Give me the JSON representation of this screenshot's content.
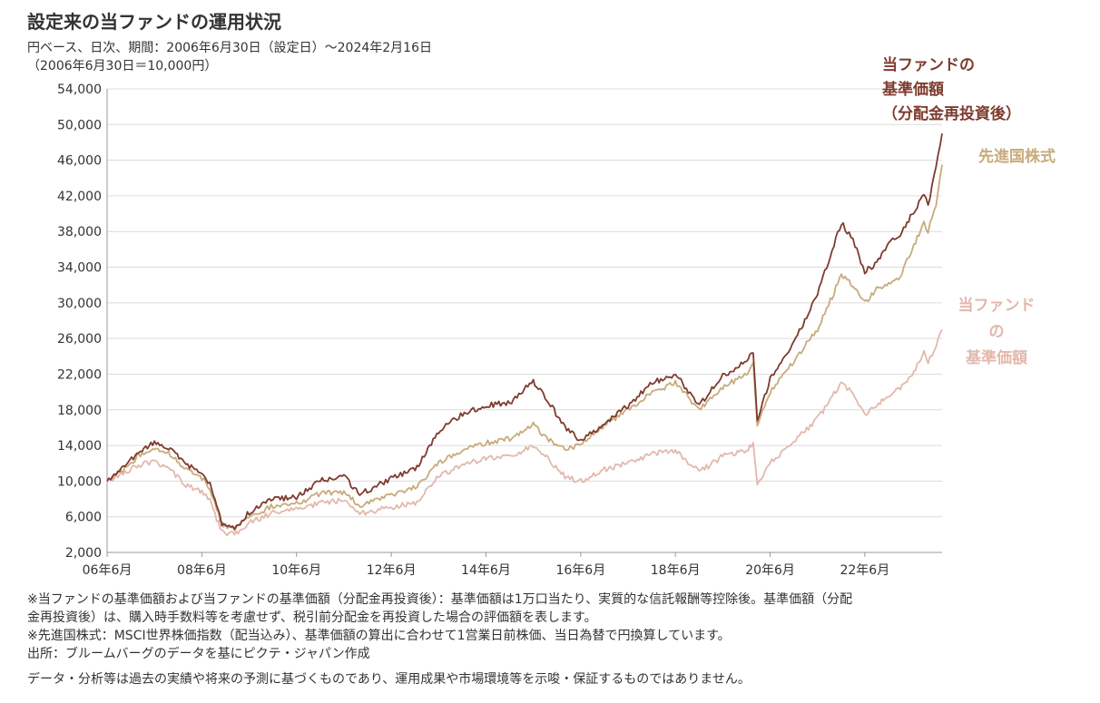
{
  "header": {
    "title": "設定来の当ファンドの運用状況",
    "subtitle_1": "円ベース、日次、期間：2006年6月30日（設定日）～2024年2月16日",
    "subtitle_2": "（2006年6月30日＝10,000円）"
  },
  "colors": {
    "reinvested": "#7e3b2e",
    "msci": "#c7ab7b",
    "nav": "#e3b8ad",
    "grid": "#dcdcdc"
  },
  "chart_data": {
    "type": "line",
    "title": "設定来の当ファンドの運用状況",
    "xlabel": "",
    "ylabel": "",
    "x_ticks": [
      "06年6月",
      "08年6月",
      "10年6月",
      "12年6月",
      "14年6月",
      "16年6月",
      "18年6月",
      "20年6月",
      "22年6月"
    ],
    "x_start": "2006-06-30",
    "x_end": "2024-02-16",
    "ylim": [
      2000,
      54000
    ],
    "y_ticks": [
      "2,000",
      "6,000",
      "10,000",
      "14,000",
      "18,000",
      "22,000",
      "26,000",
      "30,000",
      "34,000",
      "38,000",
      "42,000",
      "46,000",
      "50,000",
      "54,000"
    ],
    "y_tick_values": [
      2000,
      6000,
      10000,
      14000,
      18000,
      22000,
      26000,
      30000,
      34000,
      38000,
      42000,
      46000,
      50000,
      54000
    ],
    "grid": true,
    "legend": "direct labels at right end of lines",
    "series": [
      {
        "name": "当ファンドの基準価額（分配金再投資後）",
        "label_lines": [
          "当ファンドの",
          "基準価額",
          "（分配金再投資後）"
        ],
        "x": [
          "2006-06-30",
          "2006-10-31",
          "2007-02-28",
          "2007-06-30",
          "2007-10-31",
          "2008-02-28",
          "2008-06-30",
          "2008-08-31",
          "2008-11-30",
          "2009-03-10",
          "2009-06-30",
          "2009-12-31",
          "2010-06-30",
          "2010-12-31",
          "2011-06-30",
          "2011-10-31",
          "2012-06-30",
          "2012-12-31",
          "2013-06-30",
          "2013-12-31",
          "2014-06-30",
          "2014-12-31",
          "2015-06-30",
          "2015-09-30",
          "2016-02-29",
          "2016-06-30",
          "2016-12-31",
          "2017-06-30",
          "2017-12-31",
          "2018-06-30",
          "2018-12-31",
          "2019-06-30",
          "2019-12-31",
          "2020-02-20",
          "2020-03-23",
          "2020-06-30",
          "2020-12-31",
          "2021-06-30",
          "2021-12-31",
          "2022-03-31",
          "2022-06-30",
          "2022-09-30",
          "2022-12-31",
          "2023-03-31",
          "2023-06-30",
          "2023-09-30",
          "2023-10-31",
          "2023-12-31",
          "2024-02-16"
        ],
        "values": [
          10000,
          11500,
          13200,
          14300,
          13600,
          11800,
          11000,
          9600,
          5300,
          4700,
          6500,
          8000,
          8200,
          10100,
          10500,
          8500,
          10300,
          11300,
          15500,
          17600,
          18500,
          18800,
          21200,
          19500,
          16000,
          14500,
          16500,
          18500,
          21000,
          22000,
          18500,
          21800,
          23500,
          24500,
          16800,
          21500,
          25500,
          31000,
          39000,
          37000,
          33500,
          34500,
          36800,
          37500,
          40000,
          42000,
          41000,
          45000,
          49000
        ]
      },
      {
        "name": "先進国株式",
        "label_lines": [
          "先進国株式"
        ],
        "x": [
          "2006-06-30",
          "2006-10-31",
          "2007-02-28",
          "2007-06-30",
          "2007-10-31",
          "2008-02-28",
          "2008-06-30",
          "2008-08-31",
          "2008-11-30",
          "2009-03-10",
          "2009-06-30",
          "2009-12-31",
          "2010-06-30",
          "2010-12-31",
          "2011-06-30",
          "2011-10-31",
          "2012-06-30",
          "2012-12-31",
          "2013-06-30",
          "2013-12-31",
          "2014-06-30",
          "2014-12-31",
          "2015-06-30",
          "2015-09-30",
          "2016-02-29",
          "2016-06-30",
          "2016-12-31",
          "2017-06-30",
          "2017-12-31",
          "2018-06-30",
          "2018-12-31",
          "2019-06-30",
          "2019-12-31",
          "2020-02-20",
          "2020-03-23",
          "2020-06-30",
          "2020-12-31",
          "2021-06-30",
          "2021-12-31",
          "2022-03-31",
          "2022-06-30",
          "2022-09-30",
          "2022-12-31",
          "2023-03-31",
          "2023-06-30",
          "2023-09-30",
          "2023-10-31",
          "2023-12-31",
          "2024-02-16"
        ],
        "values": [
          10000,
          11300,
          12800,
          13700,
          13000,
          11200,
          10400,
          9100,
          5200,
          4500,
          6000,
          7200,
          7400,
          8600,
          8800,
          7200,
          8500,
          9300,
          12000,
          13500,
          14300,
          14800,
          16300,
          15000,
          13500,
          14200,
          16300,
          18000,
          20000,
          21000,
          18000,
          20500,
          22000,
          23300,
          16500,
          20000,
          23500,
          27000,
          33000,
          32000,
          30000,
          31500,
          32000,
          33000,
          36000,
          39000,
          38000,
          41000,
          45500
        ]
      },
      {
        "name": "当ファンドの基準価額",
        "label_lines": [
          "当ファンド",
          "の",
          "基準価額"
        ],
        "x": [
          "2006-06-30",
          "2006-10-31",
          "2007-02-28",
          "2007-06-30",
          "2007-10-31",
          "2008-02-28",
          "2008-06-30",
          "2008-08-31",
          "2008-11-30",
          "2009-03-10",
          "2009-06-30",
          "2009-12-31",
          "2010-06-30",
          "2010-12-31",
          "2011-06-30",
          "2011-10-31",
          "2012-06-30",
          "2012-12-31",
          "2013-06-30",
          "2013-12-31",
          "2014-06-30",
          "2014-12-31",
          "2015-06-30",
          "2015-09-30",
          "2016-02-29",
          "2016-06-30",
          "2016-12-31",
          "2017-06-30",
          "2017-12-31",
          "2018-06-30",
          "2018-12-31",
          "2019-06-30",
          "2019-12-31",
          "2020-02-20",
          "2020-03-23",
          "2020-06-30",
          "2020-12-31",
          "2021-06-30",
          "2021-12-31",
          "2022-03-31",
          "2022-06-30",
          "2022-09-30",
          "2022-12-31",
          "2023-03-31",
          "2023-06-30",
          "2023-09-30",
          "2023-10-31",
          "2023-12-31",
          "2024-02-16"
        ],
        "values": [
          10000,
          10800,
          11800,
          12200,
          11300,
          9500,
          8800,
          7800,
          4300,
          4000,
          5300,
          6500,
          6800,
          7600,
          7800,
          6300,
          7100,
          7500,
          10500,
          11800,
          12500,
          12800,
          14000,
          12800,
          10500,
          10000,
          11300,
          12000,
          13000,
          13500,
          11000,
          12800,
          13500,
          14200,
          9500,
          12000,
          14500,
          17000,
          21000,
          19800,
          17500,
          18500,
          19500,
          20500,
          22000,
          24500,
          23500,
          25000,
          27000
        ]
      }
    ]
  },
  "notes": {
    "line_1": "※当ファンドの基準価額および当ファンドの基準価額（分配金再投資後）：基準価額は1万口当たり、実質的な信託報酬等控除後。基準価額（分配",
    "line_2": "金再投資後）は、購入時手数料等を考慮せず、税引前分配金を再投資した場合の評価額を表します。",
    "line_3": "※先進国株式：MSCI世界株価指数（配当込み）、基準価額の算出に合わせて1営業日前株価、当日為替で円換算しています。",
    "line_4": "出所：ブルームバーグのデータを基にピクテ・ジャパン作成",
    "disclaimer": "データ・分析等は過去の実績や将来の予測に基づくものであり、運用成果や市場環境等を示唆・保証するものではありません。"
  }
}
